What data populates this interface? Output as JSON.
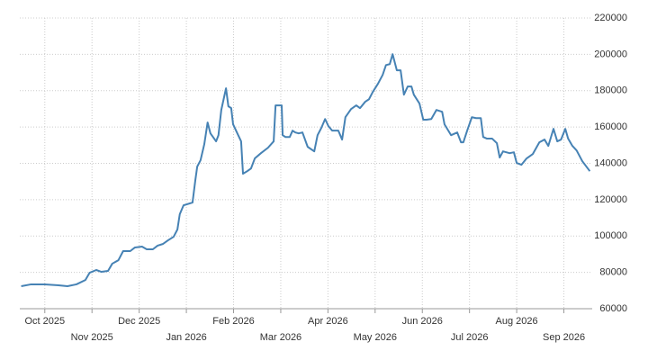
{
  "chart_data": {
    "type": "line",
    "x": [
      -0.5,
      -0.29,
      0,
      0.29,
      0.48,
      0.67,
      0.86,
      0.95,
      1.09,
      1.2,
      1.34,
      1.43,
      1.56,
      1.66,
      1.81,
      1.91,
      2.06,
      2.16,
      2.29,
      2.39,
      2.5,
      2.61,
      2.73,
      2.81,
      2.86,
      2.94,
      3.13,
      3.19,
      3.23,
      3.3,
      3.38,
      3.45,
      3.51,
      3.63,
      3.68,
      3.74,
      3.84,
      3.89,
      3.95,
      3.99,
      4.08,
      4.16,
      4.2,
      4.29,
      4.37,
      4.45,
      4.58,
      4.73,
      4.85,
      4.89,
      5.02,
      5.04,
      5.1,
      5.19,
      5.25,
      5.31,
      5.38,
      5.46,
      5.57,
      5.71,
      5.78,
      5.86,
      5.94,
      6.01,
      6.09,
      6.22,
      6.3,
      6.37,
      6.49,
      6.6,
      6.68,
      6.79,
      6.87,
      6.95,
      7.06,
      7.16,
      7.23,
      7.31,
      7.37,
      7.46,
      7.54,
      7.61,
      7.69,
      7.77,
      7.82,
      7.94,
      8.02,
      8.09,
      8.19,
      8.3,
      8.42,
      8.47,
      8.61,
      8.74,
      8.82,
      8.87,
      8.95,
      9.05,
      9.14,
      9.24,
      9.29,
      9.37,
      9.48,
      9.58,
      9.64,
      9.71,
      9.85,
      9.94,
      10.0,
      10.1,
      10.21,
      10.34,
      10.48,
      10.59,
      10.67,
      10.78,
      10.86,
      10.94,
      11.03,
      11.09,
      11.18,
      11.27,
      11.39,
      11.55
    ],
    "series": [
      {
        "color": "#4682b4",
        "values": [
          72400,
          73400,
          73400,
          72900,
          72400,
          73400,
          75800,
          79800,
          81300,
          80300,
          80800,
          84800,
          86700,
          91700,
          91700,
          93700,
          94200,
          92700,
          92700,
          94700,
          95600,
          97600,
          99600,
          103600,
          112000,
          116900,
          118400,
          130800,
          138200,
          141700,
          150600,
          162500,
          156500,
          152100,
          155500,
          169400,
          181300,
          171400,
          170400,
          161500,
          156500,
          152100,
          134300,
          135700,
          137200,
          142700,
          145600,
          148600,
          152100,
          171900,
          171900,
          155500,
          154500,
          154500,
          158000,
          157000,
          156500,
          157000,
          149100,
          146600,
          155500,
          159500,
          164400,
          160500,
          158000,
          158000,
          153100,
          165400,
          169900,
          171900,
          170400,
          173900,
          175300,
          179300,
          183800,
          188700,
          194100,
          194600,
          200100,
          191200,
          191200,
          177800,
          182300,
          182300,
          177800,
          172900,
          164000,
          164000,
          164400,
          169400,
          168400,
          161500,
          155500,
          157000,
          151600,
          151600,
          158000,
          165400,
          164900,
          164900,
          154500,
          153600,
          153600,
          151100,
          143200,
          146600,
          145600,
          146100,
          140200,
          139200,
          142700,
          145100,
          151600,
          153100,
          149600,
          159000,
          152100,
          153100,
          159000,
          153600,
          149600,
          147100,
          141200,
          135700
        ]
      }
    ],
    "xlim": [
      -0.53,
      11.6
    ],
    "xticks": [
      {
        "value": 0,
        "label": "Oct 2025"
      },
      {
        "value": 1,
        "label": "Nov 2025"
      },
      {
        "value": 2,
        "label": "Dec 2025"
      },
      {
        "value": 3,
        "label": "Jan 2026"
      },
      {
        "value": 4,
        "label": "Feb 2026"
      },
      {
        "value": 5,
        "label": "Mar 2026"
      },
      {
        "value": 6,
        "label": "Apr 2026"
      },
      {
        "value": 7,
        "label": "May 2026"
      },
      {
        "value": 8,
        "label": "Jun 2026"
      },
      {
        "value": 9,
        "label": "Jul 2026"
      },
      {
        "value": 10,
        "label": "Aug 2026"
      },
      {
        "value": 11,
        "label": "Sep 2026"
      }
    ],
    "ylim": [
      60000,
      220000
    ],
    "yticks": [
      60000,
      80000,
      100000,
      120000,
      140000,
      160000,
      180000,
      200000,
      220000
    ],
    "grid": true
  }
}
